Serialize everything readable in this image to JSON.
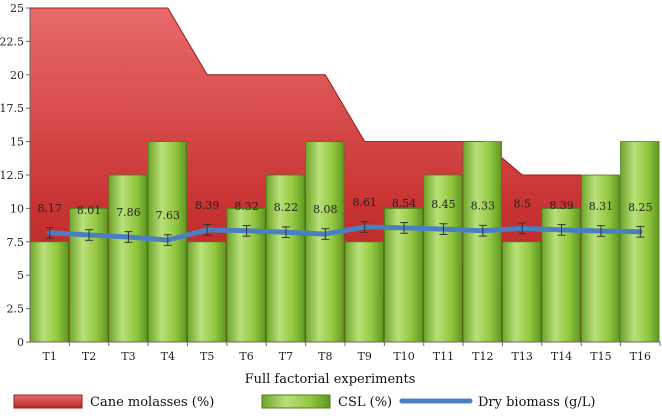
{
  "chart_data": {
    "type": "bar",
    "categories": [
      "T1",
      "T2",
      "T3",
      "T4",
      "T5",
      "T6",
      "T7",
      "T8",
      "T9",
      "T10",
      "T11",
      "T12",
      "T13",
      "T14",
      "T15",
      "T16"
    ],
    "series": [
      {
        "name": "Cane molasses (%)",
        "type": "area",
        "color": "#d94040",
        "values": [
          25,
          25,
          25,
          25,
          20,
          20,
          20,
          20,
          15,
          15,
          15,
          15,
          12.5,
          12.5,
          null,
          null
        ]
      },
      {
        "name": "CSL (%)",
        "type": "bar",
        "color": "#8fc23a",
        "values": [
          7.5,
          10,
          12.5,
          15,
          7.5,
          10,
          12.5,
          15,
          7.5,
          10,
          12.5,
          15,
          7.5,
          10,
          12.5,
          15
        ]
      },
      {
        "name": "Dry biomass (g/L)",
        "type": "line",
        "color": "#4a7fc1",
        "values": [
          8.17,
          8.01,
          7.86,
          7.63,
          8.39,
          8.32,
          8.22,
          8.08,
          8.61,
          8.54,
          8.45,
          8.33,
          8.5,
          8.39,
          8.31,
          8.25
        ],
        "labels": [
          "8.17",
          "8.01",
          "7.86",
          "7.63",
          "8.39",
          "8.32",
          "8.22",
          "8.08",
          "8.61",
          "8.54",
          "8.45",
          "8.33",
          "8.5",
          "8.39",
          "8.31",
          "8.25"
        ],
        "error": 0.4
      }
    ],
    "xlabel": "Full factorial experiments",
    "ylabel": "",
    "ylim": [
      0,
      25
    ],
    "yticks": [
      "0",
      "2.5",
      "5",
      "7.5",
      "10",
      "12.5",
      "15",
      "17.5",
      "20",
      "22.5",
      "25"
    ],
    "grid": false,
    "legend_position": "bottom"
  }
}
